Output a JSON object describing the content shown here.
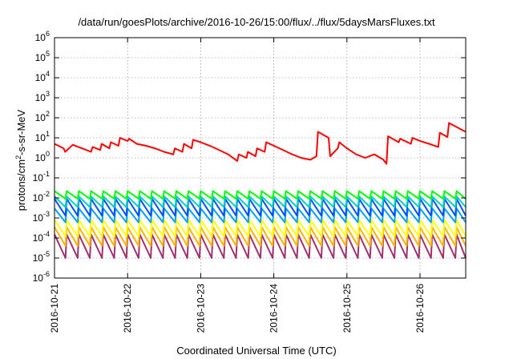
{
  "chart_data": {
    "type": "line",
    "title": "/data/run/goesPlots/archive/2016-10-26/15:00/flux/../flux/5daysMarsFluxes.txt",
    "xlabel": "Coordinated Universal Time (UTC)",
    "ylabel_base": "protons/cm",
    "ylabel_sup": "2",
    "ylabel_rest": "-s-sr-MeV",
    "y_scale": "log",
    "ylim": [
      1e-06,
      1000000.0
    ],
    "y_ticks": [
      {
        "base": "10",
        "exp": "6"
      },
      {
        "base": "10",
        "exp": "5"
      },
      {
        "base": "10",
        "exp": "4"
      },
      {
        "base": "10",
        "exp": "3"
      },
      {
        "base": "10",
        "exp": "2"
      },
      {
        "base": "10",
        "exp": "1"
      },
      {
        "base": "10",
        "exp": "0"
      },
      {
        "base": "10",
        "exp": "-1"
      },
      {
        "base": "10",
        "exp": "-2"
      },
      {
        "base": "10",
        "exp": "-3"
      },
      {
        "base": "10",
        "exp": "-4"
      },
      {
        "base": "10",
        "exp": "-5"
      },
      {
        "base": "10",
        "exp": "-6"
      }
    ],
    "xlim_days": [
      "2016-10-21",
      "2016-10-26 15:00"
    ],
    "x_ticks": [
      "2016-10-21",
      "2016-10-22",
      "2016-10-23",
      "2016-10-24",
      "2016-10-25",
      "2016-10-26"
    ],
    "grid": true,
    "legend": "none",
    "series": [
      {
        "color": "#ff0000",
        "x": [
          "2016-10-21 00:00",
          "2016-10-21 03:00",
          "2016-10-21 03:30",
          "2016-10-21 06:00",
          "2016-10-21 09:00",
          "2016-10-21 12:00",
          "2016-10-21 12:30",
          "2016-10-21 15:00",
          "2016-10-21 15:30",
          "2016-10-21 18:00",
          "2016-10-21 18:30",
          "2016-10-21 21:00",
          "2016-10-21 21:30",
          "2016-10-22 00:00",
          "2016-10-22 00:30",
          "2016-10-22 03:00",
          "2016-10-22 06:00",
          "2016-10-22 09:00",
          "2016-10-22 12:00",
          "2016-10-22 15:00",
          "2016-10-22 15:30",
          "2016-10-22 18:00",
          "2016-10-22 18:30",
          "2016-10-22 21:00",
          "2016-10-22 21:30",
          "2016-10-23 00:00",
          "2016-10-23 03:00",
          "2016-10-23 06:00",
          "2016-10-23 09:00",
          "2016-10-23 12:00",
          "2016-10-23 12:30",
          "2016-10-23 15:00",
          "2016-10-23 15:30",
          "2016-10-23 18:00",
          "2016-10-23 18:30",
          "2016-10-23 21:00",
          "2016-10-23 21:30",
          "2016-10-24 00:00",
          "2016-10-24 03:00",
          "2016-10-24 06:00",
          "2016-10-24 09:00",
          "2016-10-24 12:00",
          "2016-10-24 14:00",
          "2016-10-24 14:30",
          "2016-10-24 18:00",
          "2016-10-24 18:30",
          "2016-10-24 21:00",
          "2016-10-24 21:30",
          "2016-10-25 00:00",
          "2016-10-25 03:00",
          "2016-10-25 06:00",
          "2016-10-25 09:00",
          "2016-10-25 12:00",
          "2016-10-25 13:00",
          "2016-10-25 13:30",
          "2016-10-25 17:00",
          "2016-10-25 17:30",
          "2016-10-25 21:00",
          "2016-10-25 21:30",
          "2016-10-26 00:00",
          "2016-10-26 03:00",
          "2016-10-26 06:00",
          "2016-10-26 06:30",
          "2016-10-26 09:00",
          "2016-10-26 09:30",
          "2016-10-26 15:00"
        ],
        "values": [
          5,
          3,
          2,
          4.5,
          3,
          2,
          3.5,
          2.5,
          5,
          3,
          6,
          4,
          10,
          7,
          9,
          5,
          4,
          3,
          2,
          1.5,
          3,
          2,
          5,
          3,
          8,
          6,
          4,
          2.5,
          1.5,
          0.7,
          1.5,
          1,
          2,
          1.2,
          3,
          2,
          6,
          4,
          2.5,
          1.5,
          1,
          0.8,
          1.2,
          20,
          10,
          1.2,
          3,
          6,
          3,
          1.5,
          1,
          1.5,
          0.8,
          0.5,
          12,
          6,
          9,
          5,
          10,
          7,
          5,
          3.5,
          18,
          11,
          55,
          20
        ]
      },
      {
        "color": "#00ff00",
        "pattern": "sawtooth",
        "cycles_per_day": 6,
        "hi": 0.022,
        "lo": 0.009
      },
      {
        "color": "#00d0c0",
        "pattern": "sawtooth",
        "cycles_per_day": 6,
        "hi": 0.012,
        "lo": 0.0035
      },
      {
        "color": "#0050ff",
        "pattern": "sawtooth",
        "cycles_per_day": 6,
        "hi": 0.009,
        "lo": 0.0013
      },
      {
        "color": "#00a0ff",
        "pattern": "sawtooth",
        "cycles_per_day": 6,
        "hi": 0.003,
        "lo": 0.0006
      },
      {
        "color": "#ffff00",
        "pattern": "sawtooth",
        "cycles_per_day": 6,
        "hi": 0.0008,
        "lo": 0.00012
      },
      {
        "color": "#ffb000",
        "pattern": "sawtooth",
        "cycles_per_day": 6,
        "hi": 0.00035,
        "lo": 4e-05
      },
      {
        "color": "#a03070",
        "pattern": "sawtooth",
        "cycles_per_day": 6,
        "hi": 0.00015,
        "lo": 1e-05
      }
    ]
  }
}
